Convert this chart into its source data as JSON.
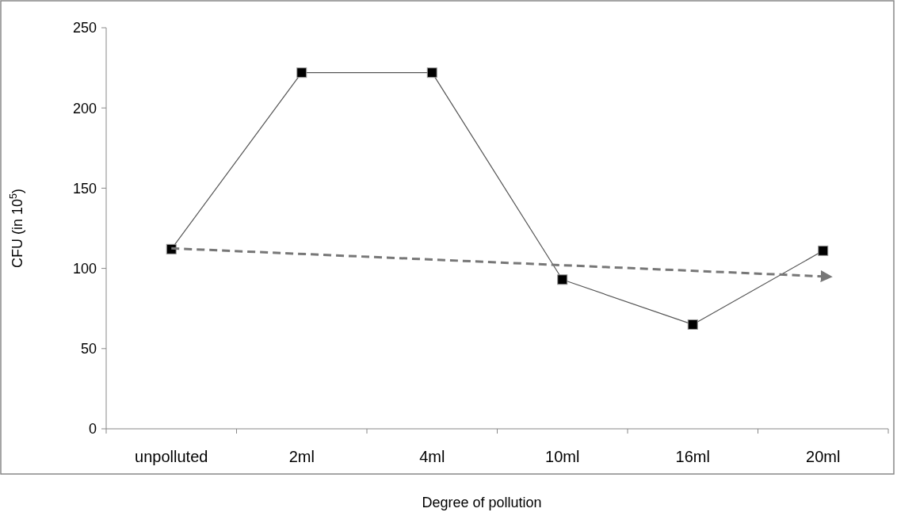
{
  "chart_data": {
    "type": "line",
    "xlabel": "Degree of pollution",
    "ylabel": "CFU (in 10$^{5}$)",
    "categories": [
      "unpolluted",
      "2ml",
      "4ml",
      "10ml",
      "16ml",
      "20ml"
    ],
    "ylim": [
      0,
      250
    ],
    "yticks": [
      0,
      50,
      100,
      150,
      200,
      250
    ],
    "grid": false,
    "series": [
      {
        "color": "#000000",
        "values": [
          112,
          222,
          222,
          93,
          65,
          111
        ],
        "marker": "square",
        "line_style": "solid"
      },
      {
        "type": "line",
        "x": [
          "unpolluted",
          "20ml"
        ],
        "color": "#777777",
        "values": [
          112.5,
          95
        ],
        "marker": "none",
        "line_style": "dashed"
      }
    ]
  }
}
